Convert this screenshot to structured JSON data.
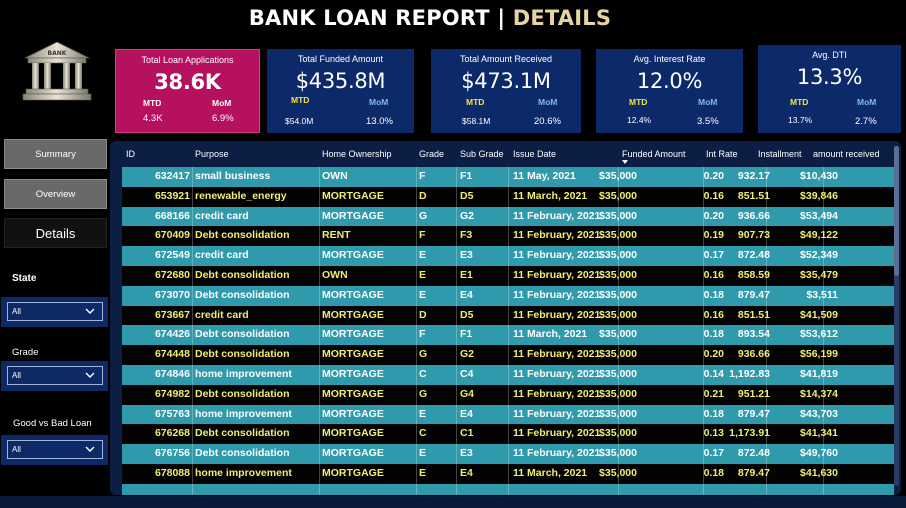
{
  "header": {
    "title_main": "BANK LOAN REPORT |",
    "title_accent": "DETAILS"
  },
  "logo": {
    "text": "BANK"
  },
  "colors": {
    "navy": "#0c2a6a",
    "pink": "#b5115f",
    "teal_row": "#2e9aab",
    "yellow_text": "#f1ec72",
    "accent": "#e8d4a2"
  },
  "kpis": [
    {
      "label": "Total Loan Applications",
      "value": "38.6K",
      "mtd_label": "MTD",
      "mtd": "4.3K",
      "mom_label": "MoM",
      "mom": "6.9%"
    },
    {
      "label": "Total Funded Amount",
      "value": "$435.8M",
      "mtd_label": "MTD",
      "mtd": "$54.0M",
      "mom_label": "MoM",
      "mom": "13.0%"
    },
    {
      "label": "Total  Amount Received",
      "value": "$473.1M",
      "mtd_label": "MTD",
      "mtd": "$58.1M",
      "mom_label": "MoM",
      "mom": "20.6%"
    },
    {
      "label": "Avg. Interest Rate",
      "value": "12.0%",
      "mtd_label": "MTD",
      "mtd": "12.4%",
      "mom_label": "MoM",
      "mom": "3.5%"
    },
    {
      "label": "Avg. DTI",
      "value": "13.3%",
      "mtd_label": "MTD",
      "mtd": "13.7%",
      "mom_label": "MoM",
      "mom": "2.7%"
    }
  ],
  "nav": {
    "summary": "Summary",
    "overview": "Overview",
    "details": "Details"
  },
  "filters": {
    "state": {
      "label": "State",
      "value": "All"
    },
    "grade": {
      "label": "Grade",
      "value": "All"
    },
    "loan": {
      "label": "Good vs Bad Loan",
      "value": "All"
    }
  },
  "table": {
    "columns": [
      "ID",
      "Purpose",
      "Home Ownership",
      "Grade",
      "Sub Grade",
      "Issue Date",
      "Funded Amount",
      "Int Rate",
      "Installment",
      "amount received"
    ],
    "rows": [
      [
        "632417",
        "small business",
        "OWN",
        "F",
        "F1",
        "11 May, 2021",
        "$35,000",
        "0.20",
        "932.17",
        "$10,430"
      ],
      [
        "653921",
        "renewable_energy",
        "MORTGAGE",
        "D",
        "D5",
        "11 March, 2021",
        "$35,000",
        "0.16",
        "851.51",
        "$39,846"
      ],
      [
        "668166",
        "credit card",
        "MORTGAGE",
        "G",
        "G2",
        "11 February, 2021",
        "$35,000",
        "0.20",
        "936.66",
        "$53,494"
      ],
      [
        "670409",
        "Debt consolidation",
        "RENT",
        "F",
        "F3",
        "11 February, 2021",
        "$35,000",
        "0.19",
        "907.73",
        "$49,122"
      ],
      [
        "672549",
        "credit card",
        "MORTGAGE",
        "E",
        "E3",
        "11 February, 2021",
        "$35,000",
        "0.17",
        "872.48",
        "$52,349"
      ],
      [
        "672680",
        "Debt consolidation",
        "OWN",
        "E",
        "E1",
        "11 February, 2021",
        "$35,000",
        "0.16",
        "858.59",
        "$35,479"
      ],
      [
        "673070",
        "Debt consolidation",
        "MORTGAGE",
        "E",
        "E4",
        "11 February, 2021",
        "$35,000",
        "0.18",
        "879.47",
        "$3,511"
      ],
      [
        "673667",
        "credit card",
        "MORTGAGE",
        "D",
        "D5",
        "11 February, 2021",
        "$35,000",
        "0.16",
        "851.51",
        "$41,509"
      ],
      [
        "674426",
        "Debt consolidation",
        "MORTGAGE",
        "F",
        "F1",
        "11 March, 2021",
        "$35,000",
        "0.18",
        "893.54",
        "$53,612"
      ],
      [
        "674448",
        "Debt consolidation",
        "MORTGAGE",
        "G",
        "G2",
        "11 February, 2021",
        "$35,000",
        "0.20",
        "936.66",
        "$56,199"
      ],
      [
        "674846",
        "home improvement",
        "MORTGAGE",
        "C",
        "C4",
        "11 February, 2021",
        "$35,000",
        "0.14",
        "1,192.83",
        "$41,819"
      ],
      [
        "674982",
        "Debt consolidation",
        "MORTGAGE",
        "G",
        "G4",
        "11 February, 2021",
        "$35,000",
        "0.21",
        "951.21",
        "$14,374"
      ],
      [
        "675763",
        "home improvement",
        "MORTGAGE",
        "E",
        "E4",
        "11 February, 2021",
        "$35,000",
        "0.18",
        "879.47",
        "$43,703"
      ],
      [
        "676268",
        "Debt consolidation",
        "MORTGAGE",
        "C",
        "C1",
        "11 February, 2021",
        "$35,000",
        "0.13",
        "1,173.91",
        "$41,341"
      ],
      [
        "676756",
        "Debt consolidation",
        "MORTGAGE",
        "E",
        "E3",
        "11 February, 2021",
        "$35,000",
        "0.17",
        "872.48",
        "$49,760"
      ],
      [
        "678088",
        "home improvement",
        "MORTGAGE",
        "E",
        "E4",
        "11 March, 2021",
        "$35,000",
        "0.18",
        "879.47",
        "$41,630"
      ]
    ]
  }
}
